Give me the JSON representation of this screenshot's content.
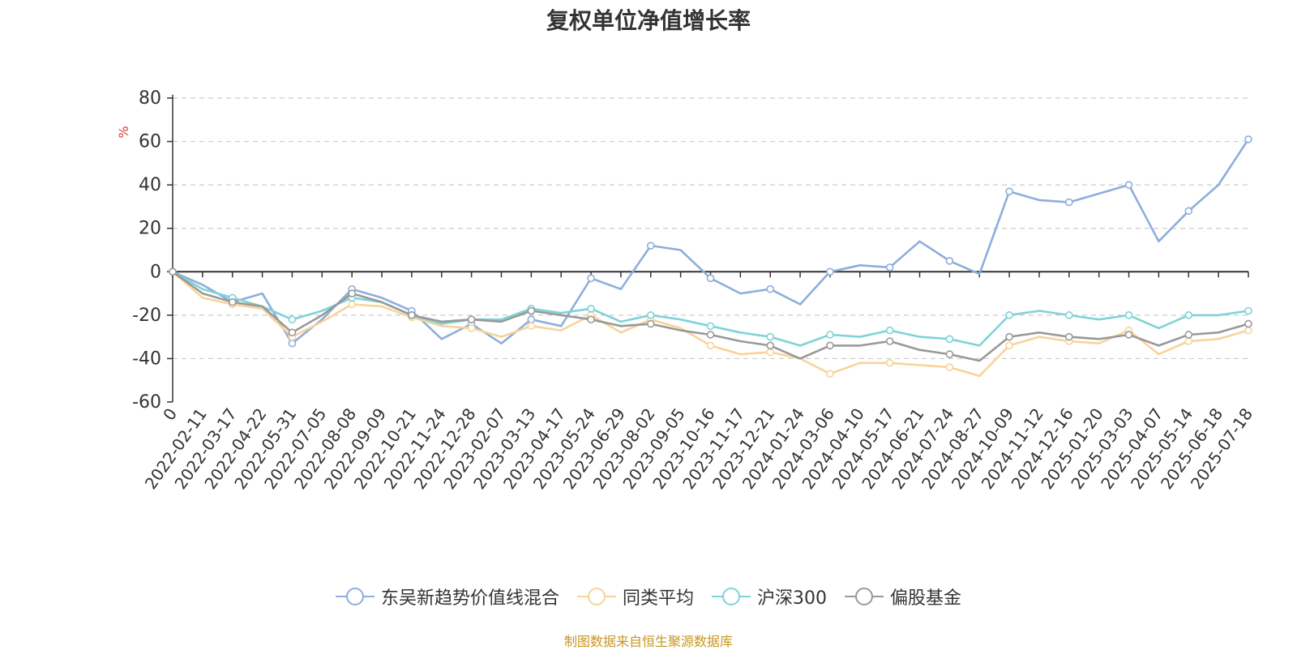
{
  "chart_data": {
    "type": "line",
    "title": "复权单位净值增长率",
    "ylabel": "%",
    "ylim": [
      -60,
      80
    ],
    "yticks": [
      80,
      60,
      40,
      20,
      0,
      -20,
      -40,
      -60
    ],
    "grid": true,
    "legend_position": "bottom",
    "x_labels": [
      "0",
      "2022-02-11",
      "2022-03-17",
      "2022-04-22",
      "2022-05-31",
      "2022-07-05",
      "2022-08-08",
      "2022-09-09",
      "2022-10-21",
      "2022-11-24",
      "2022-12-28",
      "2023-02-07",
      "2023-03-13",
      "2023-04-17",
      "2023-05-24",
      "2023-06-29",
      "2023-08-02",
      "2023-09-05",
      "2023-10-16",
      "2023-11-17",
      "2023-12-21",
      "2024-01-24",
      "2024-03-06",
      "2024-04-10",
      "2024-05-17",
      "2024-06-21",
      "2024-07-24",
      "2024-08-27",
      "2024-10-09",
      "2024-11-12",
      "2024-12-16",
      "2025-01-20",
      "2025-03-03",
      "2025-04-07",
      "2025-05-14",
      "2025-06-18",
      "2025-07-18"
    ],
    "series": [
      {
        "name": "东吴新趋势价值线混合",
        "color": "#8eaedc",
        "values": [
          0,
          -6,
          -14,
          -10,
          -33,
          -22,
          -8,
          -12,
          -18,
          -31,
          -24,
          -33,
          -22,
          -25,
          -3,
          -8,
          12,
          10,
          -3,
          -10,
          -8,
          -15,
          0,
          3,
          2,
          14,
          5,
          -1,
          37,
          33,
          32,
          36,
          40,
          14,
          28,
          40,
          61
        ]
      },
      {
        "name": "同类平均",
        "color": "#f8d39a",
        "values": [
          0,
          -12,
          -15,
          -17,
          -30,
          -23,
          -15,
          -16,
          -21,
          -25,
          -26,
          -30,
          -25,
          -27,
          -20,
          -28,
          -22,
          -26,
          -34,
          -38,
          -37,
          -40,
          -47,
          -42,
          -42,
          -43,
          -44,
          -48,
          -34,
          -30,
          -32,
          -33,
          -27,
          -38,
          -32,
          -31,
          -27
        ]
      },
      {
        "name": "沪深300",
        "color": "#7ed3d8",
        "values": [
          0,
          -8,
          -12,
          -16,
          -22,
          -18,
          -12,
          -14,
          -20,
          -24,
          -22,
          -22,
          -17,
          -19,
          -17,
          -23,
          -20,
          -22,
          -25,
          -28,
          -30,
          -34,
          -29,
          -30,
          -27,
          -30,
          -31,
          -34,
          -20,
          -18,
          -20,
          -22,
          -20,
          -26,
          -20,
          -20,
          -18
        ]
      },
      {
        "name": "偏股基金",
        "color": "#999999",
        "values": [
          0,
          -10,
          -14,
          -16,
          -28,
          -20,
          -10,
          -14,
          -20,
          -23,
          -22,
          -23,
          -18,
          -20,
          -22,
          -25,
          -24,
          -27,
          -29,
          -32,
          -34,
          -40,
          -34,
          -34,
          -32,
          -36,
          -38,
          -41,
          -30,
          -28,
          -30,
          -31,
          -29,
          -34,
          -29,
          -28,
          -24
        ]
      }
    ]
  },
  "source_note": "制图数据来自恒生聚源数据库"
}
